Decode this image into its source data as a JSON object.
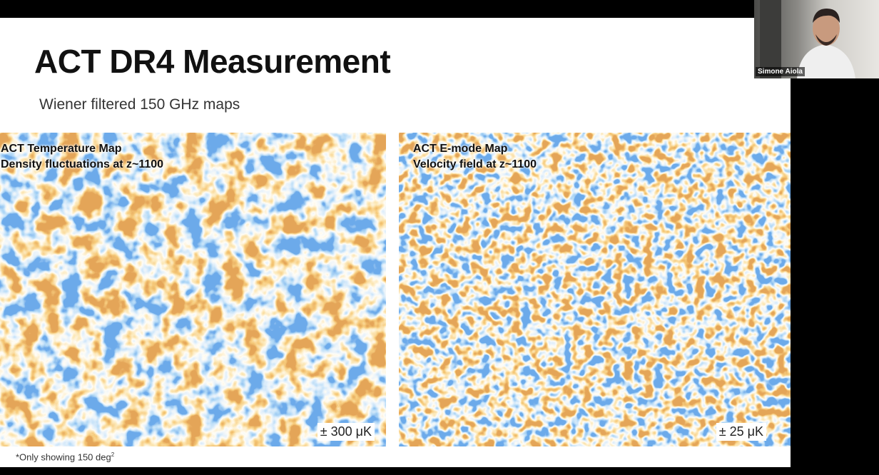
{
  "slide": {
    "title": "ACT DR4 Measurement",
    "subtitle": "Wiener filtered 150 GHz maps",
    "maps": [
      {
        "lines": [
          "ACT Temperature Map",
          "Density fluctuations at z~1100"
        ],
        "scale": "± 300 μK"
      },
      {
        "lines": [
          "ACT E-mode Map",
          "Velocity field at z~1100"
        ],
        "scale": "± 25 μK"
      }
    ],
    "footnote": {
      "text": "*Only showing 150 deg",
      "superscript": "2"
    }
  },
  "participant": {
    "name": "Simone Aiola"
  }
}
